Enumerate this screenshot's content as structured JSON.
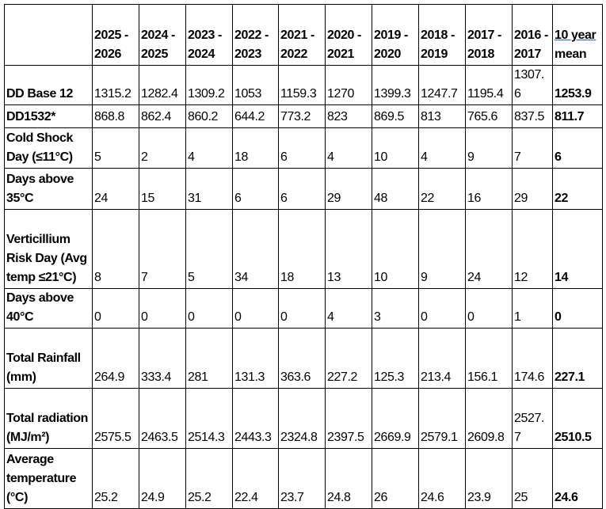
{
  "table": {
    "headers": [
      "",
      "2025 - 2026",
      "2024 - 2025",
      "2023 - 2024",
      "2022 - 2023",
      "2021 - 2022",
      "2020 - 2021",
      "2019 - 2020",
      "2018 - 2019",
      "2017 - 2018",
      "2016 - 2017"
    ],
    "mean_header_link": "10 year",
    "mean_header_rest": "mean",
    "rows": [
      {
        "label": "DD Base 12",
        "values": [
          "1315.2",
          "1282.4",
          "1309.2",
          "1053",
          "1159.3",
          "1270",
          "1399.3",
          "1247.7",
          "1195.4",
          "1307.6"
        ],
        "mean": "1253.9"
      },
      {
        "label": "DD1532*",
        "values": [
          "868.8",
          "862.4",
          "860.2",
          "644.2",
          "773.2",
          "823",
          "869.5",
          "813",
          "765.6",
          "837.5"
        ],
        "mean": "811.7"
      },
      {
        "label": "Cold Shock Day (≤11°C)",
        "values": [
          "5",
          "2",
          "4",
          "18",
          "6",
          "4",
          "10",
          "4",
          "9",
          "7"
        ],
        "mean": "6"
      },
      {
        "label": "Days above 35°C",
        "values": [
          "24",
          "15",
          "31",
          "6",
          "6",
          "29",
          "48",
          "22",
          "16",
          "29"
        ],
        "mean": "22"
      },
      {
        "label": "Verticillium Risk Day (Avg temp ≤21°C)",
        "values": [
          "8",
          "7",
          "5",
          "34",
          "18",
          "13",
          "10",
          "9",
          "24",
          "12"
        ],
        "mean": "14"
      },
      {
        "label": "Days above 40°C",
        "values": [
          "0",
          "0",
          "0",
          "0",
          "0",
          "4",
          "3",
          "0",
          "0",
          "1"
        ],
        "mean": "0"
      },
      {
        "label": "Total Rainfall (mm)",
        "values": [
          "264.9",
          "333.4",
          "281",
          "131.3",
          "363.6",
          "227.2",
          "125.3",
          "213.4",
          "156.1",
          "174.6"
        ],
        "mean": "227.1"
      },
      {
        "label": "Total radiation (MJ/m²)",
        "values": [
          "2575.5",
          "2463.5",
          "2514.3",
          "2443.3",
          "2324.8",
          "2397.5",
          "2669.9",
          "2579.1",
          "2609.8",
          "2527.7"
        ],
        "mean": "2510.5"
      },
      {
        "label": "Average temperature (°C)",
        "values": [
          "25.2",
          "24.9",
          "25.2",
          "22.4",
          "23.7",
          "24.8",
          "26",
          "24.6",
          "23.9",
          "25"
        ],
        "mean": "24.6"
      }
    ]
  }
}
